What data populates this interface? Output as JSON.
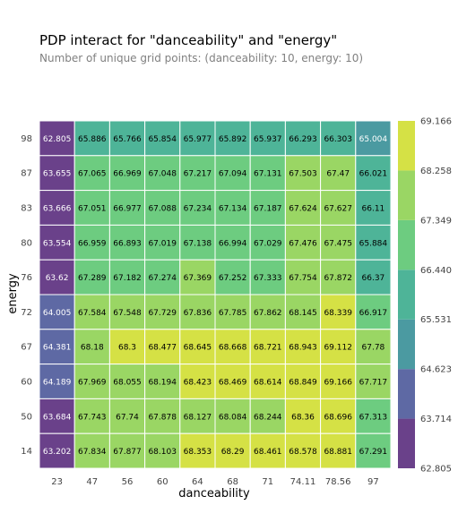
{
  "chart_data": {
    "type": "heatmap",
    "title": "PDP interact for \"danceability\" and \"energy\"",
    "subtitle": "Number of unique grid points: (danceability: 10, energy: 10)",
    "xlabel": "danceability",
    "ylabel": "energy",
    "x_ticks": [
      "23",
      "47",
      "56",
      "60",
      "64",
      "68",
      "71",
      "74.11",
      "78.56",
      "97"
    ],
    "y_ticks": [
      "98",
      "87",
      "83",
      "80",
      "76",
      "72",
      "67",
      "60",
      "50",
      "14"
    ],
    "values": [
      [
        62.805,
        65.886,
        65.766,
        65.854,
        65.977,
        65.892,
        65.937,
        66.293,
        66.303,
        65.004
      ],
      [
        63.655,
        67.065,
        66.969,
        67.048,
        67.217,
        67.094,
        67.131,
        67.503,
        67.47,
        66.021
      ],
      [
        63.666,
        67.051,
        66.977,
        67.088,
        67.234,
        67.134,
        67.187,
        67.624,
        67.627,
        66.11
      ],
      [
        63.554,
        66.959,
        66.893,
        67.019,
        67.138,
        66.994,
        67.029,
        67.476,
        67.475,
        65.884
      ],
      [
        63.62,
        67.289,
        67.182,
        67.274,
        67.369,
        67.252,
        67.333,
        67.754,
        67.872,
        66.37
      ],
      [
        64.005,
        67.584,
        67.548,
        67.729,
        67.836,
        67.785,
        67.862,
        68.145,
        68.339,
        66.917
      ],
      [
        64.381,
        68.18,
        68.3,
        68.477,
        68.645,
        68.668,
        68.721,
        68.943,
        69.112,
        67.78
      ],
      [
        64.189,
        67.969,
        68.055,
        68.194,
        68.423,
        68.469,
        68.614,
        68.849,
        69.166,
        67.717
      ],
      [
        63.684,
        67.743,
        67.74,
        67.878,
        68.127,
        68.084,
        68.244,
        68.36,
        68.696,
        67.313
      ],
      [
        63.202,
        67.834,
        67.877,
        68.103,
        68.353,
        68.29,
        68.461,
        68.578,
        68.881,
        67.291
      ]
    ],
    "colorbar_ticks": [
      "62.805",
      "63.714",
      "64.623",
      "65.531",
      "66.440",
      "67.349",
      "68.258",
      "69.166"
    ],
    "colorbar_colors": [
      "#6a418a",
      "#5e69a4",
      "#4b9aa1",
      "#4eb498",
      "#6dcc80",
      "#9ad664",
      "#d5e145"
    ],
    "vmin": 62.805,
    "vmax": 69.166
  }
}
